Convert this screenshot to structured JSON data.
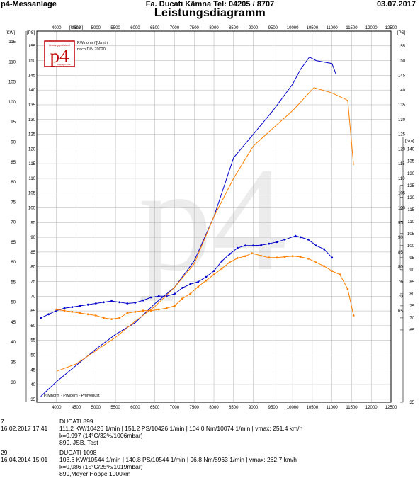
{
  "header": {
    "left": "p4-Messanlage",
    "center": "Fa. Ducati Kämna Tel: 04205 / 8707",
    "right": "03.07.2017"
  },
  "title": "Leistungsdiagramm",
  "logo": {
    "text": "p4",
    "small_top": "Leistungsprüfstand",
    "small_bottom": "copyright Ihde"
  },
  "watermark": "p4",
  "colors": {
    "run1": "#0000cc",
    "run2": "#ff8000",
    "grid": "#b0b0b0",
    "logo_red": "#c00000"
  },
  "chart_data": {
    "type": "line",
    "x_unit": "[U/min]",
    "left_unit_kw": "[KW]",
    "left_unit_ps": "[PS]",
    "right_unit_ps": "[PS]",
    "right_unit_nm": "[Nm]",
    "legend_top": [
      "P/Mnorm / [U/min]",
      "nach DIN 70020"
    ],
    "legend_bottom": "P/Mnorm - P/Mgem - P/Mverlust",
    "xlim": [
      3500,
      12500
    ],
    "xticks": [
      4000,
      4500,
      5000,
      5500,
      6000,
      6500,
      7000,
      7500,
      8000,
      8500,
      9000,
      9500,
      10000,
      10500,
      11000,
      11500,
      12000,
      12500
    ],
    "kw_ticks": [
      30,
      35,
      40,
      45,
      50,
      55,
      60,
      65,
      70,
      75,
      80,
      85,
      90,
      95,
      100,
      105,
      110,
      115
    ],
    "ps_ticks": [
      35,
      40,
      45,
      50,
      55,
      60,
      65,
      70,
      75,
      80,
      85,
      90,
      95,
      100,
      105,
      110,
      115,
      120,
      125,
      130,
      135,
      140,
      145,
      150,
      155
    ],
    "nm_ticks": [
      35,
      65,
      70,
      75,
      80,
      85,
      90,
      95,
      100,
      105,
      110,
      115,
      120,
      125,
      130,
      135,
      140
    ],
    "ps_range": [
      34,
      160
    ],
    "nm_range": [
      35,
      189
    ],
    "series": [
      {
        "name": "DUCATI 899",
        "color": "#0000cc",
        "power_ps": [
          [
            3600,
            36
          ],
          [
            4000,
            41
          ],
          [
            4500,
            46.5
          ],
          [
            5000,
            52
          ],
          [
            5500,
            57
          ],
          [
            6000,
            61
          ],
          [
            6500,
            67.5
          ],
          [
            7000,
            73
          ],
          [
            7500,
            82
          ],
          [
            8000,
            97
          ],
          [
            8500,
            117
          ],
          [
            9000,
            125
          ],
          [
            9500,
            133
          ],
          [
            10000,
            142
          ],
          [
            10200,
            147
          ],
          [
            10426,
            151.2
          ],
          [
            10600,
            150
          ],
          [
            11000,
            149
          ],
          [
            11100,
            145.5
          ]
        ],
        "torque_nm": [
          [
            3600,
            70
          ],
          [
            3800,
            71.5
          ],
          [
            4000,
            73
          ],
          [
            4200,
            74
          ],
          [
            4400,
            74.5
          ],
          [
            4600,
            75
          ],
          [
            4800,
            75.5
          ],
          [
            5000,
            76
          ],
          [
            5200,
            76.5
          ],
          [
            5400,
            77
          ],
          [
            5600,
            76.5
          ],
          [
            5800,
            76
          ],
          [
            6000,
            76.3
          ],
          [
            6200,
            77.3
          ],
          [
            6400,
            78.5
          ],
          [
            6600,
            79
          ],
          [
            6800,
            79
          ],
          [
            7000,
            80
          ],
          [
            7200,
            82.5
          ],
          [
            7400,
            84
          ],
          [
            7600,
            85
          ],
          [
            7800,
            87
          ],
          [
            8000,
            89.5
          ],
          [
            8200,
            93.5
          ],
          [
            8400,
            96.5
          ],
          [
            8600,
            99
          ],
          [
            8800,
            100
          ],
          [
            9000,
            100
          ],
          [
            9200,
            100.2
          ],
          [
            9400,
            100.8
          ],
          [
            9600,
            101.5
          ],
          [
            9800,
            102.5
          ],
          [
            10074,
            104
          ],
          [
            10200,
            103.5
          ],
          [
            10400,
            102.5
          ],
          [
            10600,
            100
          ],
          [
            10800,
            98.5
          ],
          [
            11000,
            95
          ]
        ]
      },
      {
        "name": "DUCATI 1098",
        "color": "#ff8000",
        "power_ps": [
          [
            4000,
            44.5
          ],
          [
            4500,
            47
          ],
          [
            5000,
            51.5
          ],
          [
            5500,
            56
          ],
          [
            6000,
            61.5
          ],
          [
            6500,
            66.5
          ],
          [
            7000,
            73
          ],
          [
            7500,
            81
          ],
          [
            8000,
            97
          ],
          [
            8500,
            110
          ],
          [
            9000,
            121
          ],
          [
            9500,
            127
          ],
          [
            10000,
            133
          ],
          [
            10544,
            140.8
          ],
          [
            11000,
            139
          ],
          [
            11400,
            136.5
          ],
          [
            11550,
            114.5
          ]
        ],
        "torque_nm": [
          [
            4000,
            73.5
          ],
          [
            4200,
            73
          ],
          [
            4400,
            72.5
          ],
          [
            4600,
            72
          ],
          [
            4800,
            71.5
          ],
          [
            5000,
            71
          ],
          [
            5200,
            70
          ],
          [
            5400,
            69.5
          ],
          [
            5600,
            70
          ],
          [
            5800,
            72
          ],
          [
            6000,
            72.5
          ],
          [
            6200,
            73
          ],
          [
            6400,
            73
          ],
          [
            6600,
            73.5
          ],
          [
            6800,
            74
          ],
          [
            7000,
            75
          ],
          [
            7200,
            78
          ],
          [
            7400,
            80
          ],
          [
            7600,
            83
          ],
          [
            7800,
            85.5
          ],
          [
            8000,
            88
          ],
          [
            8200,
            90.5
          ],
          [
            8400,
            93
          ],
          [
            8600,
            94.8
          ],
          [
            8800,
            95.6
          ],
          [
            8963,
            96.8
          ],
          [
            9200,
            95.8
          ],
          [
            9400,
            95
          ],
          [
            9600,
            95
          ],
          [
            9800,
            95.3
          ],
          [
            10000,
            95.6
          ],
          [
            10200,
            95.3
          ],
          [
            10400,
            94.6
          ],
          [
            10600,
            93
          ],
          [
            10800,
            91.5
          ],
          [
            11000,
            89.5
          ],
          [
            11200,
            88
          ],
          [
            11400,
            82
          ],
          [
            11550,
            71
          ]
        ]
      }
    ]
  },
  "runs": [
    {
      "number": "7",
      "name": "DUCATI 899",
      "date": "16.02.2017",
      "time": "17:41",
      "values": "111.2 KW/10426 1/min  |  151.2 PS/10426 1/min  |  104.0 Nm/10074 1/min  |  vmax: 251.4 km/h",
      "conditions": "k=0,997 (14°C/32%/1006mbar)",
      "note": "899, JSB, Test"
    },
    {
      "number": "29",
      "name": "DUCATI 1098",
      "date": "16.04.2014",
      "time": "15:01",
      "values": "103.6 KW/10544 1/min  |  140.8 PS/10544 1/min  |  96.8 Nm/8963 1/min  |  vmax: 262.7 km/h",
      "conditions": "k=0,986 (15°C/25%/1019mbar)",
      "note": "899,Meyer Hoppe 1000km"
    }
  ]
}
